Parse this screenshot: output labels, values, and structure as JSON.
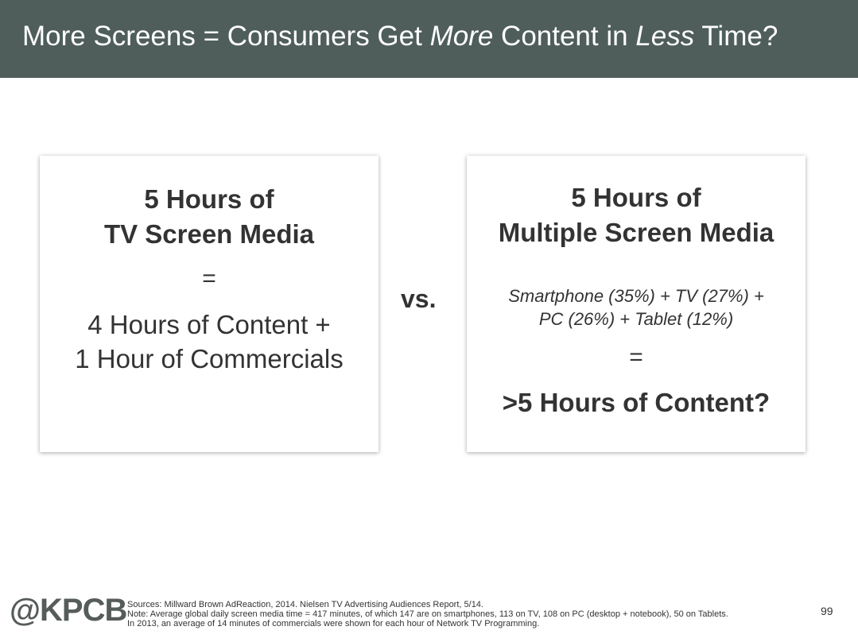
{
  "header": {
    "title_part1": "More Screens = Consumers Get ",
    "title_em1": "More",
    "title_part2": " Content in ",
    "title_em2": "Less",
    "title_part3": " Time?"
  },
  "left_card": {
    "heading_line1": "5 Hours of",
    "heading_line2": "TV Screen Media",
    "equals": "=",
    "body_line1": "4 Hours of Content +",
    "body_line2": "1 Hour of Commercials"
  },
  "vs_label": "vs.",
  "right_card": {
    "heading_line1": "5 Hours of",
    "heading_line2": "Multiple Screen Media",
    "breakdown_line1": "Smartphone (35%) + TV (27%) +",
    "breakdown_line2": "PC (26%) + Tablet (12%)",
    "equals": "=",
    "result": ">5 Hours of Content?"
  },
  "footer": {
    "logo": "@KPCB",
    "sources": "Sources: Millward Brown AdReaction, 2014. Nielsen TV Advertising Audiences Report, 5/14.",
    "note": "Note: Average global daily screen media time = 417 minutes, of which 147 are on smartphones, 113 on TV, 108 on PC (desktop + notebook), 50 on Tablets.",
    "note2": "In 2013, an average of 14 minutes of commercials were shown for each hour of Network TV Programming.",
    "page_number": "99"
  },
  "colors": {
    "header_bg": "#4f5e5b",
    "text": "#333333"
  }
}
